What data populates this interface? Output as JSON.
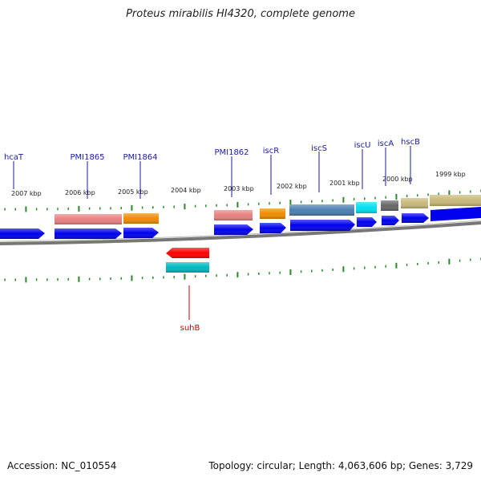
{
  "title": "Proteus mirabilis HI4320, complete genome",
  "footer": {
    "accession": "Accession: NC_010554",
    "summary": "Topology: circular; Length: 4,063,606 bp; Genes: 3,729"
  },
  "colors": {
    "backbone": "#777777",
    "tick": "#2a8a2a",
    "gene_label": "#1a1aaa",
    "gene_label_reverse": "#cc0000",
    "cds": "#0000ee"
  },
  "scale_labels": [
    "2007 kbp",
    "2006 kbp",
    "2005 kbp",
    "2004 kbp",
    "2003 kbp",
    "2002 kbp",
    "2001 kbp",
    "2000 kbp",
    "1999 kbp"
  ],
  "genes": [
    {
      "name": "hcaT",
      "strand": "forward"
    },
    {
      "name": "PMI1865",
      "strand": "forward"
    },
    {
      "name": "PMI1864",
      "strand": "forward"
    },
    {
      "name": "PMI1862",
      "strand": "forward"
    },
    {
      "name": "iscR",
      "strand": "forward"
    },
    {
      "name": "iscS",
      "strand": "forward"
    },
    {
      "name": "iscU",
      "strand": "forward"
    },
    {
      "name": "iscA",
      "strand": "forward"
    },
    {
      "name": "hscB",
      "strand": "forward"
    },
    {
      "name": "suhB",
      "strand": "reverse"
    }
  ],
  "feature_tracks": [
    {
      "color": "#e88080"
    },
    {
      "color": "#f08c00"
    },
    {
      "color": "#e88080"
    },
    {
      "color": "#f08c00"
    },
    {
      "color": "#4a7fb0"
    },
    {
      "color": "#00e0f0"
    },
    {
      "color": "#666666"
    },
    {
      "color": "#c8b878"
    },
    {
      "color": "#ff0000"
    },
    {
      "color": "#00b8c0"
    }
  ]
}
